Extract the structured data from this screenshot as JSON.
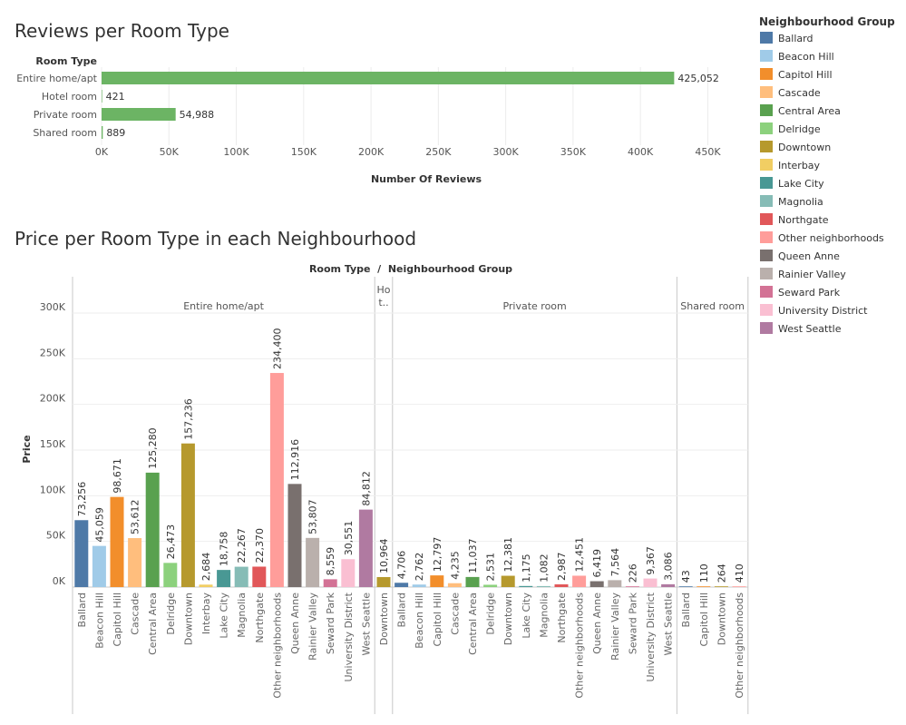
{
  "chart_data": [
    {
      "type": "bar",
      "orientation": "horizontal",
      "title": "Reviews per Room Type",
      "category_header": "Room Type",
      "categories": [
        "Entire home/apt",
        "Hotel room",
        "Private room",
        "Shared room"
      ],
      "values": [
        425052,
        421,
        54988,
        889
      ],
      "value_labels": [
        "425,052",
        "421",
        "54,988",
        "889"
      ],
      "xlabel": "Number Of Reviews",
      "xlim": [
        0,
        480000
      ],
      "xticks": [
        0,
        50000,
        100000,
        150000,
        200000,
        250000,
        300000,
        350000,
        400000,
        450000
      ],
      "xtick_labels": [
        "0K",
        "50K",
        "100K",
        "150K",
        "200K",
        "250K",
        "300K",
        "350K",
        "400K",
        "450K"
      ],
      "color": "#6cb464",
      "grid": true
    },
    {
      "type": "bar",
      "title": "Price per Room Type in each Neighbourhood",
      "header": "Room Type  /  Neighbourhood Group",
      "ylabel": "Price",
      "ylim": [
        0,
        300000
      ],
      "yticks": [
        0,
        50000,
        100000,
        150000,
        200000,
        250000,
        300000
      ],
      "ytick_labels": [
        "0K",
        "50K",
        "100K",
        "150K",
        "200K",
        "250K",
        "300K"
      ],
      "grid": true,
      "panels": [
        {
          "room_type": "Entire home/apt",
          "header_label": "Entire home/apt",
          "bars": [
            {
              "group": "Ballard",
              "value": 73256,
              "label": "73,256"
            },
            {
              "group": "Beacon Hill",
              "value": 45059,
              "label": "45,059"
            },
            {
              "group": "Capitol Hill",
              "value": 98671,
              "label": "98,671"
            },
            {
              "group": "Cascade",
              "value": 53612,
              "label": "53,612"
            },
            {
              "group": "Central Area",
              "value": 125280,
              "label": "125,280"
            },
            {
              "group": "Delridge",
              "value": 26473,
              "label": "26,473"
            },
            {
              "group": "Downtown",
              "value": 157236,
              "label": "157,236"
            },
            {
              "group": "Interbay",
              "value": 2684,
              "label": "2,684"
            },
            {
              "group": "Lake City",
              "value": 18758,
              "label": "18,758"
            },
            {
              "group": "Magnolia",
              "value": 22267,
              "label": "22,267"
            },
            {
              "group": "Northgate",
              "value": 22370,
              "label": "22,370"
            },
            {
              "group": "Other neighborhoods",
              "value": 234400,
              "label": "234,400"
            },
            {
              "group": "Queen Anne",
              "value": 112916,
              "label": "112,916"
            },
            {
              "group": "Rainier Valley",
              "value": 53807,
              "label": "53,807"
            },
            {
              "group": "Seward Park",
              "value": 8559,
              "label": "8,559"
            },
            {
              "group": "University District",
              "value": 30551,
              "label": "30,551"
            },
            {
              "group": "West Seattle",
              "value": 84812,
              "label": "84,812"
            }
          ]
        },
        {
          "room_type": "Hotel room",
          "header_label": "Ho t..",
          "bars": [
            {
              "group": "Downtown",
              "value": 10964,
              "label": "10,964"
            }
          ]
        },
        {
          "room_type": "Private room",
          "header_label": "Private room",
          "bars": [
            {
              "group": "Ballard",
              "value": 4706,
              "label": "4,706"
            },
            {
              "group": "Beacon Hill",
              "value": 2762,
              "label": "2,762"
            },
            {
              "group": "Capitol Hill",
              "value": 12797,
              "label": "12,797"
            },
            {
              "group": "Cascade",
              "value": 4235,
              "label": "4,235"
            },
            {
              "group": "Central Area",
              "value": 11037,
              "label": "11,037"
            },
            {
              "group": "Delridge",
              "value": 2531,
              "label": "2,531"
            },
            {
              "group": "Downtown",
              "value": 12381,
              "label": "12,381"
            },
            {
              "group": "Lake City",
              "value": 1175,
              "label": "1,175"
            },
            {
              "group": "Magnolia",
              "value": 1082,
              "label": "1,082"
            },
            {
              "group": "Northgate",
              "value": 2987,
              "label": "2,987"
            },
            {
              "group": "Other neighborhoods",
              "value": 12451,
              "label": "12,451"
            },
            {
              "group": "Queen Anne",
              "value": 6419,
              "label": "6,419"
            },
            {
              "group": "Rainier Valley",
              "value": 7564,
              "label": "7,564"
            },
            {
              "group": "Seward Park",
              "value": 226,
              "label": "226"
            },
            {
              "group": "University District",
              "value": 9367,
              "label": "9,367"
            },
            {
              "group": "West Seattle",
              "value": 3086,
              "label": "3,086"
            }
          ]
        },
        {
          "room_type": "Shared room",
          "header_label": "Shared room",
          "bars": [
            {
              "group": "Ballard",
              "value": 43,
              "label": "43"
            },
            {
              "group": "Capitol Hill",
              "value": 110,
              "label": "110"
            },
            {
              "group": "Downtown",
              "value": 264,
              "label": "264"
            },
            {
              "group": "Other neighborhoods",
              "value": 410,
              "label": "410"
            }
          ]
        }
      ]
    }
  ],
  "legend": {
    "title": "Neighbourhood Group",
    "placement": "right",
    "items": [
      {
        "name": "Ballard",
        "color": "#4e79a7"
      },
      {
        "name": "Beacon Hill",
        "color": "#a0cbe8"
      },
      {
        "name": "Capitol Hill",
        "color": "#f28e2b"
      },
      {
        "name": "Cascade",
        "color": "#ffbe7d"
      },
      {
        "name": "Central Area",
        "color": "#59a14f"
      },
      {
        "name": "Delridge",
        "color": "#8cd17d"
      },
      {
        "name": "Downtown",
        "color": "#b6992d"
      },
      {
        "name": "Interbay",
        "color": "#f1ce63"
      },
      {
        "name": "Lake City",
        "color": "#499894"
      },
      {
        "name": "Magnolia",
        "color": "#86bcb6"
      },
      {
        "name": "Northgate",
        "color": "#e15759"
      },
      {
        "name": "Other neighborhoods",
        "color": "#ff9d9a"
      },
      {
        "name": "Queen Anne",
        "color": "#79706e"
      },
      {
        "name": "Rainier Valley",
        "color": "#bab0ac"
      },
      {
        "name": "Seward Park",
        "color": "#d37295"
      },
      {
        "name": "University District",
        "color": "#fabfd2"
      },
      {
        "name": "West Seattle",
        "color": "#b07aa1"
      }
    ]
  }
}
